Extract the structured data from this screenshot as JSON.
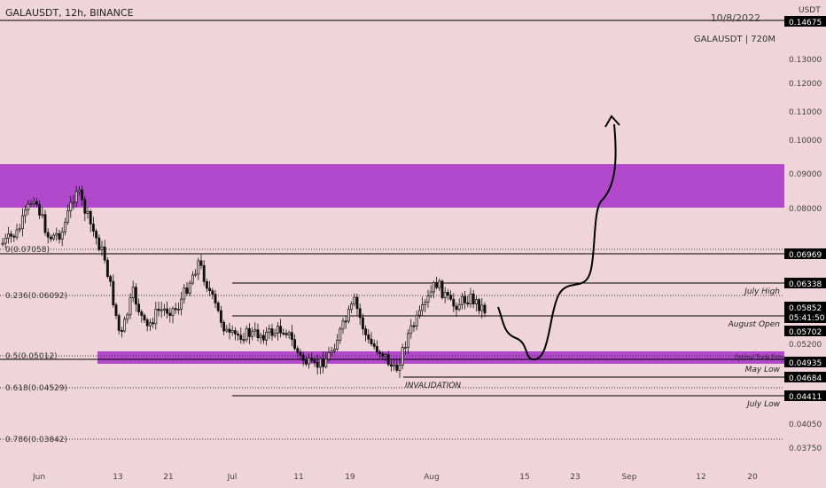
{
  "header": {
    "symbol_line": "GALAUSDT, 12h, BINANCE",
    "date": "10/8/2022",
    "volume_label": "GALAUSDT | 720M"
  },
  "price_axis": {
    "currency": "USDT",
    "top_price": "0.14675",
    "ticks": [
      "0.13000",
      "0.12000",
      "0.11000",
      "0.10000",
      "0.09000",
      "0.08000",
      "0.05200",
      "0.04050",
      "0.03750"
    ]
  },
  "time_axis": {
    "labels": [
      "Jun",
      "13",
      "21",
      "Jul",
      "11",
      "19",
      "Aug",
      "15",
      "23",
      "Sep",
      "12",
      "20"
    ]
  },
  "colors": {
    "background": "#efd5d9",
    "zone": "#a020c8",
    "candle": "#111111",
    "line": "#000000"
  },
  "chart_data": {
    "type": "candlestick",
    "title": "GALAUSDT, 12h, BINANCE",
    "ylim": [
      0.0364,
      0.1475
    ],
    "y_scale": "log",
    "supply_zone": {
      "low": 0.081,
      "high": 0.0925
    },
    "fib_levels": [
      {
        "label": "0(0.07058)",
        "value": 0.07058
      },
      {
        "label": "0.236(0.06092)",
        "value": 0.06092
      },
      {
        "label": "0.5(0.05012)",
        "value": 0.05012
      },
      {
        "label": "0.618(0.04529)",
        "value": 0.04529
      },
      {
        "label": "0.786(0.03842)",
        "value": 0.03842
      }
    ],
    "levels": [
      {
        "name": "",
        "value": 0.06969,
        "tag": "0.06969"
      },
      {
        "name": "July High",
        "value": 0.06338,
        "tag": "0.06338"
      },
      {
        "name": "",
        "value": 0.05852,
        "tag": "0.05852"
      },
      {
        "name": "",
        "value": 0.05852,
        "tag": "05:41:50"
      },
      {
        "name": "August Open",
        "value": 0.05702,
        "tag": "0.05702"
      },
      {
        "name": "Optimal Trade Entry",
        "value": 0.04935,
        "tag": "0.04935"
      },
      {
        "name": "May Low",
        "value": 0.04684,
        "tag": "0.04684"
      },
      {
        "name": "July Low",
        "value": 0.04411,
        "tag": "0.04411"
      }
    ],
    "annotations": [
      "INVALIDATION"
    ]
  }
}
